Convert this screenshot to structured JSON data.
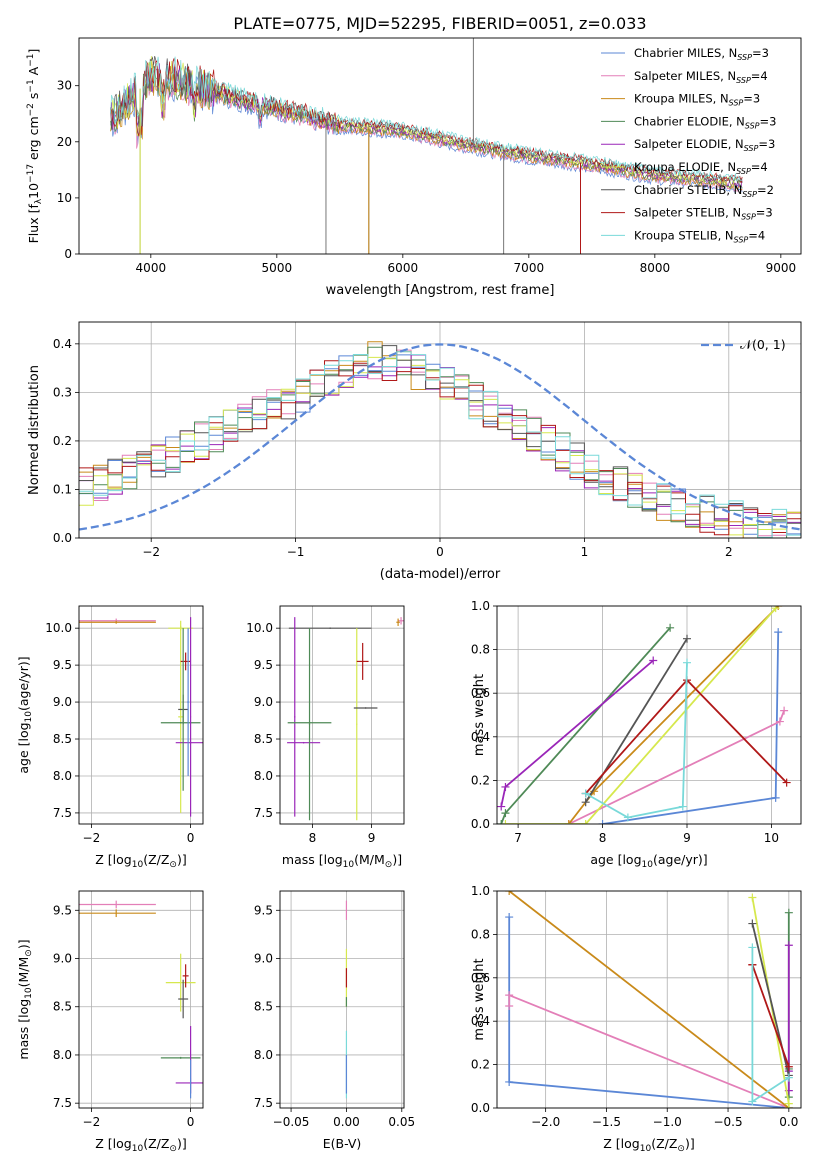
{
  "colors": {
    "Chabrier MILES": "#5b87d6",
    "Salpeter MILES": "#e37fb8",
    "Kroupa MILES": "#c98a1a",
    "Chabrier ELODIE": "#4f8a57",
    "Salpeter ELODIE": "#9a26b8",
    "Kroupa ELODIE": "#d6e84e",
    "Chabrier STELIB": "#555555",
    "Salpeter STELIB": "#b01818",
    "Kroupa STELIB": "#79d9d9",
    "normal": "#5b87d6",
    "grid": "#b0b0b0"
  },
  "chart_data": [
    {
      "id": "spectrum",
      "type": "line",
      "title": "PLATE=0775, MJD=52295, FIBERID=0051, z=0.033",
      "xlabel": "wavelength [Angstrom, rest frame]",
      "ylabel_parts": {
        "a": "Flux [f",
        "b": "λ",
        "c": "10",
        "d": "−17",
        "e": " erg cm",
        "f": "−2",
        "g": " s",
        "h": "−1",
        "i": " A",
        "j": "−1",
        "k": "]"
      },
      "xlim": [
        3430,
        9160
      ],
      "ylim": [
        0,
        38.5
      ],
      "xticks": [
        4000,
        5000,
        6000,
        7000,
        8000,
        9000
      ],
      "yticks": [
        0,
        10,
        20,
        30
      ],
      "grid": false,
      "legend_position": "top-right",
      "series": [
        {
          "name": "Chabrier MILES",
          "n": "3"
        },
        {
          "name": "Salpeter MILES",
          "n": "4"
        },
        {
          "name": "Kroupa MILES",
          "n": "3"
        },
        {
          "name": "Chabrier ELODIE",
          "n": "3"
        },
        {
          "name": "Salpeter ELODIE",
          "n": "3"
        },
        {
          "name": "Kroupa ELODIE",
          "n": "4"
        },
        {
          "name": "Chabrier STELIB",
          "n": "2"
        },
        {
          "name": "Salpeter STELIB",
          "n": "3"
        },
        {
          "name": "Kroupa STELIB",
          "n": "4"
        }
      ],
      "continuum": {
        "x": [
          3680,
          3900,
          4000,
          4200,
          4500,
          4800,
          5000,
          5500,
          6000,
          6500,
          7000,
          7500,
          8000,
          8300,
          8700
        ],
        "y": [
          24,
          29,
          32,
          31,
          29,
          27,
          26,
          23,
          22,
          19.5,
          17.5,
          16,
          14,
          13.5,
          12.5
        ]
      },
      "spikes": [
        {
          "x": 3915,
          "y": 0
        },
        {
          "x": 5390,
          "y": 0
        },
        {
          "x": 5730,
          "y": 0
        },
        {
          "x": 6560,
          "y": 38.5
        },
        {
          "x": 6800,
          "y": 0
        },
        {
          "x": 7410,
          "y": 0
        }
      ]
    },
    {
      "id": "residuals",
      "type": "histogram",
      "xlabel": "(data-model)/error",
      "ylabel": "Normed distribution",
      "xlim": [
        -2.5,
        2.5
      ],
      "ylim": [
        0,
        0.445
      ],
      "xticks": [
        -2,
        -1,
        0,
        1,
        2
      ],
      "yticks": [
        0.0,
        0.1,
        0.2,
        0.3,
        0.4
      ],
      "grid": true,
      "legend_position": "top-right",
      "normal_label": "𝒩(0, 1)",
      "bin_width": 0.1,
      "envelope": {
        "x": [
          -2.5,
          -2.0,
          -1.5,
          -1.0,
          -0.5,
          0.0,
          0.5,
          1.0,
          1.5,
          2.0,
          2.5
        ],
        "y": [
          0.1,
          0.15,
          0.22,
          0.29,
          0.37,
          0.33,
          0.24,
          0.15,
          0.08,
          0.04,
          0.02
        ]
      }
    },
    {
      "id": "age_vs_Z",
      "type": "errorbar",
      "xlabel": "Z [log",
      "xlabel_sub": "10",
      "xlabel_tail": "(Z/Z",
      "xlabel_end": ")]",
      "ylabel": "age  [log",
      "ylabel_sub": "10",
      "ylabel_tail": "(age/yr)]",
      "xlim": [
        -2.25,
        0.25
      ],
      "ylim": [
        7.35,
        10.3
      ],
      "xticks": [
        -2,
        0
      ],
      "yticks": [
        7.5,
        8.0,
        8.5,
        9.0,
        9.5,
        10.0
      ],
      "grid": true,
      "points": [
        {
          "s": "Salpeter MILES",
          "x": -1.5,
          "xerr": 0.8,
          "y": 10.1,
          "yerr": 0.03
        },
        {
          "s": "Kroupa MILES",
          "x": -1.5,
          "xerr": 0.8,
          "y": 10.08,
          "yerr": 0.02
        },
        {
          "s": "Kroupa ELODIE",
          "x": -0.2,
          "xerr": 0.25,
          "y": 10.0,
          "yerr": 0.03
        },
        {
          "s": "Kroupa ELODIE",
          "x": -0.2,
          "xerr": 0.05,
          "y": 8.8,
          "yerr": 1.3
        },
        {
          "s": "Salpeter STELIB",
          "x": -0.1,
          "xerr": 0.1,
          "y": 9.55,
          "yerr": 0.12
        },
        {
          "s": "Chabrier STELIB",
          "x": -0.15,
          "xerr": 0.1,
          "y": 8.9,
          "yerr": 0.2
        },
        {
          "s": "Chabrier ELODIE",
          "x": -0.2,
          "xerr": 0.4,
          "y": 8.72,
          "yerr": 0.01
        },
        {
          "s": "Salpeter ELODIE",
          "x": 0.0,
          "xerr": 0.3,
          "y": 8.45,
          "yerr": 0.01
        },
        {
          "s": "Salpeter ELODIE",
          "x": 0.0,
          "xerr": 0.01,
          "y": 8.8,
          "yerr": 1.35
        },
        {
          "s": "Chabrier ELODIE",
          "x": -0.15,
          "xerr": 0.01,
          "y": 8.9,
          "yerr": 1.1
        },
        {
          "s": "Chabrier MILES",
          "x": -0.05,
          "xerr": 0.02,
          "y": 9.0,
          "yerr": 1.0
        }
      ]
    },
    {
      "id": "age_vs_mass",
      "type": "errorbar",
      "xlabel": "mass [log",
      "xlabel_sub": "10",
      "xlabel_tail": "(M/M",
      "xlabel_end": ")]",
      "xlim": [
        7.45,
        9.55
      ],
      "ylim": [
        7.35,
        10.3
      ],
      "xticks": [
        8,
        9
      ],
      "yticks": [
        7.5,
        8.0,
        8.5,
        9.0,
        9.5,
        10.0
      ],
      "grid": true,
      "points": [
        {
          "s": "Chabrier STELIB",
          "x": 8.3,
          "xerr": 0.7,
          "y": 10.0,
          "yerr": 0.01
        },
        {
          "s": "Salpeter ELODIE",
          "x": 7.7,
          "xerr": 0.01,
          "y": 8.8,
          "yerr": 1.35
        },
        {
          "s": "Salpeter ELODIE",
          "x": 7.85,
          "xerr": 0.28,
          "y": 8.45,
          "yerr": 0.01
        },
        {
          "s": "Chabrier ELODIE",
          "x": 7.95,
          "xerr": 0.37,
          "y": 8.72,
          "yerr": 0.01
        },
        {
          "s": "Chabrier ELODIE",
          "x": 7.95,
          "xerr": 0.01,
          "y": 8.7,
          "yerr": 1.3
        },
        {
          "s": "Kroupa ELODIE",
          "x": 8.75,
          "xerr": 0.01,
          "y": 8.7,
          "yerr": 1.3
        },
        {
          "s": "Chabrier STELIB",
          "x": 8.9,
          "xerr": 0.2,
          "y": 8.92,
          "yerr": 0.01
        },
        {
          "s": "Salpeter STELIB",
          "x": 8.85,
          "xerr": 0.1,
          "y": 9.55,
          "yerr": 0.25
        },
        {
          "s": "Salpeter MILES",
          "x": 9.5,
          "xerr": 0.05,
          "y": 10.1,
          "yerr": 0.05
        },
        {
          "s": "Kroupa MILES",
          "x": 9.45,
          "xerr": 0.03,
          "y": 10.08,
          "yerr": 0.05
        }
      ]
    },
    {
      "id": "weight_vs_age",
      "type": "line",
      "xlabel": "age  [log",
      "xlabel_sub": "10",
      "xlabel_tail": "(age/yr)]",
      "ylabel": "mass weight",
      "xlim": [
        6.75,
        10.35
      ],
      "ylim": [
        0,
        1.0
      ],
      "xticks": [
        7,
        8,
        9,
        10
      ],
      "yticks": [
        0.0,
        0.2,
        0.4,
        0.6,
        0.8,
        1.0
      ],
      "grid": true,
      "series": [
        {
          "s": "Chabrier MILES",
          "x": [
            10.08,
            10.05,
            8.0
          ],
          "y": [
            0.88,
            0.12,
            0.0
          ]
        },
        {
          "s": "Salpeter MILES",
          "x": [
            10.15,
            10.1,
            7.6
          ],
          "y": [
            0.52,
            0.47,
            0.0
          ]
        },
        {
          "s": "Kroupa MILES",
          "x": [
            10.08,
            7.9,
            7.6
          ],
          "y": [
            1.0,
            0.15,
            0.0
          ]
        },
        {
          "s": "Chabrier ELODIE",
          "x": [
            8.8,
            6.85,
            6.8
          ],
          "y": [
            0.9,
            0.05,
            0.0
          ]
        },
        {
          "s": "Salpeter ELODIE",
          "x": [
            8.6,
            6.85,
            6.8
          ],
          "y": [
            0.75,
            0.17,
            0.08
          ]
        },
        {
          "s": "Kroupa ELODIE",
          "x": [
            10.05,
            7.8,
            6.85
          ],
          "y": [
            0.99,
            0.0,
            0.0
          ]
        },
        {
          "s": "Chabrier STELIB",
          "x": [
            9.0,
            7.8
          ],
          "y": [
            0.85,
            0.1
          ]
        },
        {
          "s": "Salpeter STELIB",
          "x": [
            10.18,
            9.0,
            7.8
          ],
          "y": [
            0.19,
            0.66,
            0.14
          ]
        },
        {
          "s": "Kroupa STELIB",
          "x": [
            9.0,
            8.95,
            8.3,
            7.8
          ],
          "y": [
            0.74,
            0.08,
            0.03,
            0.14
          ]
        }
      ]
    },
    {
      "id": "mass_vs_Z",
      "type": "errorbar",
      "xlabel": "Z [log",
      "xlabel_sub": "10",
      "xlabel_tail": "(Z/Z",
      "xlabel_end": ")]",
      "ylabel": "mass [log",
      "ylabel_sub": "10",
      "ylabel_tail": "(M/M",
      "ylabel_end": ")]",
      "xlim": [
        -2.25,
        0.25
      ],
      "ylim": [
        7.45,
        9.7
      ],
      "xticks": [
        -2,
        0
      ],
      "yticks": [
        7.5,
        8.0,
        8.5,
        9.0,
        9.5
      ],
      "grid": true,
      "points": [
        {
          "s": "Salpeter MILES",
          "x": -1.5,
          "xerr": 0.8,
          "y": 9.56,
          "yerr": 0.04
        },
        {
          "s": "Kroupa MILES",
          "x": -1.5,
          "xerr": 0.8,
          "y": 9.47,
          "yerr": 0.04
        },
        {
          "s": "Kroupa ELODIE",
          "x": -0.2,
          "xerr": 0.3,
          "y": 8.75,
          "yerr": 0.3
        },
        {
          "s": "Salpeter STELIB",
          "x": -0.1,
          "xerr": 0.06,
          "y": 8.82,
          "yerr": 0.12
        },
        {
          "s": "Chabrier STELIB",
          "x": -0.15,
          "xerr": 0.1,
          "y": 8.58,
          "yerr": 0.2
        },
        {
          "s": "Chabrier ELODIE",
          "x": -0.2,
          "xerr": 0.4,
          "y": 7.97,
          "yerr": 0.01
        },
        {
          "s": "Salpeter ELODIE",
          "x": 0.0,
          "xerr": 0.3,
          "y": 7.71,
          "yerr": 0.01
        },
        {
          "s": "Salpeter ELODIE",
          "x": 0.0,
          "xerr": 0.01,
          "y": 7.95,
          "yerr": 0.35
        },
        {
          "s": "Chabrier MILES",
          "x": 0.0,
          "xerr": 0.01,
          "y": 7.75,
          "yerr": 0.2
        }
      ]
    },
    {
      "id": "mass_vs_ebv",
      "type": "errorbar",
      "xlabel": "E(B-V)",
      "xlim": [
        -0.06,
        0.052
      ],
      "ylim": [
        7.45,
        9.7
      ],
      "xticks": [
        -0.05,
        0.0,
        0.05
      ],
      "xticklabels": [
        "−0.05",
        "0.00",
        "0.05"
      ],
      "yticks": [
        7.5,
        8.0,
        8.5,
        9.0,
        9.5
      ],
      "grid": true,
      "points": [
        {
          "s": "Salpeter MILES",
          "x": 0.0,
          "xerr": 0.0,
          "y": 9.5,
          "yerr": 0.1
        },
        {
          "s": "Kroupa ELODIE",
          "x": 0.0,
          "xerr": 0.0,
          "y": 8.8,
          "yerr": 0.3
        },
        {
          "s": "Salpeter STELIB",
          "x": 0.0,
          "xerr": 0.0,
          "y": 8.8,
          "yerr": 0.1
        },
        {
          "s": "Chabrier ELODIE",
          "x": 0.0,
          "xerr": 0.0,
          "y": 8.55,
          "yerr": 0.05
        },
        {
          "s": "Kroupa STELIB",
          "x": 0.0,
          "xerr": 0.0,
          "y": 7.9,
          "yerr": 0.35
        },
        {
          "s": "Chabrier MILES",
          "x": 0.0,
          "xerr": 0.0,
          "y": 7.8,
          "yerr": 0.2
        }
      ]
    },
    {
      "id": "weight_vs_Z",
      "type": "line",
      "xlabel": "Z [log",
      "xlabel_sub": "10",
      "xlabel_tail": "(Z/Z",
      "xlabel_end": ")]",
      "ylabel": "mass weight",
      "xlim": [
        -2.4,
        0.1
      ],
      "ylim": [
        0,
        1.0
      ],
      "xticks": [
        -2.0,
        -1.5,
        -1.0,
        -0.5,
        0.0
      ],
      "xticklabels": [
        "−2.0",
        "−1.5",
        "−1.0",
        "−0.5",
        "0.0"
      ],
      "yticks": [
        0.0,
        0.2,
        0.4,
        0.6,
        0.8,
        1.0
      ],
      "grid": true,
      "series": [
        {
          "s": "Chabrier MILES",
          "x": [
            -2.3,
            -2.3,
            0.0
          ],
          "y": [
            0.88,
            0.12,
            0.0
          ]
        },
        {
          "s": "Salpeter MILES",
          "x": [
            -2.3,
            -2.3,
            0.0
          ],
          "y": [
            0.47,
            0.52,
            0.0
          ]
        },
        {
          "s": "Kroupa MILES",
          "x": [
            -2.3,
            0.0
          ],
          "y": [
            1.0,
            0.0
          ]
        },
        {
          "s": "Chabrier ELODIE",
          "x": [
            0.0,
            0.0,
            0.0
          ],
          "y": [
            0.9,
            0.18,
            0.05
          ]
        },
        {
          "s": "Salpeter ELODIE",
          "x": [
            0.0,
            0.0,
            0.0
          ],
          "y": [
            0.75,
            0.17,
            0.08
          ]
        },
        {
          "s": "Kroupa ELODIE",
          "x": [
            -0.3,
            0.0,
            0.0
          ],
          "y": [
            0.97,
            0.02,
            0.0
          ]
        },
        {
          "s": "Chabrier STELIB",
          "x": [
            -0.3,
            0.0
          ],
          "y": [
            0.85,
            0.15
          ]
        },
        {
          "s": "Salpeter STELIB",
          "x": [
            -0.3,
            -0.3,
            0.0
          ],
          "y": [
            0.66,
            0.66,
            0.19
          ]
        },
        {
          "s": "Kroupa STELIB",
          "x": [
            -0.3,
            -0.3,
            0.0
          ],
          "y": [
            0.74,
            0.03,
            0.14
          ]
        }
      ]
    }
  ]
}
